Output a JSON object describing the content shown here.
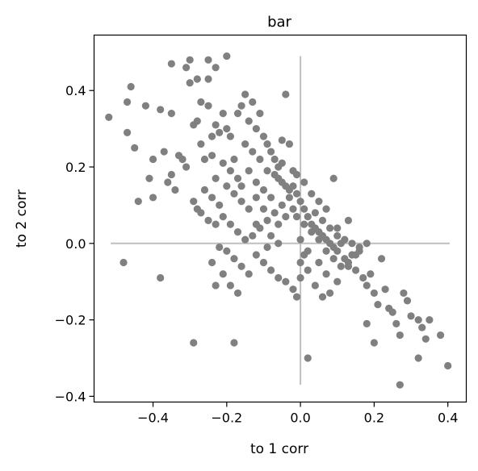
{
  "chart_data": {
    "type": "scatter",
    "title": "bar",
    "xlabel": "to 1 corr",
    "ylabel": "to 2 corr",
    "xlim": [
      -0.56,
      0.45
    ],
    "ylim": [
      -0.415,
      0.545
    ],
    "xticks": [
      -0.4,
      -0.2,
      0.0,
      0.2,
      0.4
    ],
    "xtick_labels": [
      "−0.4",
      "−0.2",
      "0.0",
      "0.2",
      "0.4"
    ],
    "yticks": [
      -0.4,
      -0.2,
      0.0,
      0.2,
      0.4
    ],
    "ytick_labels": [
      "−0.4",
      "−0.2",
      "0.0",
      "0.2",
      "0.4"
    ],
    "grid": false,
    "colors": {
      "points": "#808080",
      "reference_lines": "#bfbfbf",
      "axes": "#000000"
    },
    "reference_lines": {
      "horizontal": {
        "y": 0.0,
        "x_from": -0.515,
        "x_to": 0.405
      },
      "vertical": {
        "x": 0.0,
        "y_from": -0.37,
        "y_to": 0.49
      }
    },
    "series": [
      {
        "points": [
          [
            -0.52,
            0.33
          ],
          [
            -0.46,
            0.41
          ],
          [
            -0.47,
            0.37
          ],
          [
            -0.47,
            0.29
          ],
          [
            -0.45,
            0.25
          ],
          [
            -0.42,
            0.36
          ],
          [
            -0.38,
            0.35
          ],
          [
            -0.35,
            0.47
          ],
          [
            -0.31,
            0.46
          ],
          [
            -0.3,
            0.48
          ],
          [
            -0.28,
            0.43
          ],
          [
            -0.25,
            0.43
          ],
          [
            -0.25,
            0.48
          ],
          [
            -0.23,
            0.46
          ],
          [
            -0.2,
            0.49
          ],
          [
            -0.37,
            0.24
          ],
          [
            -0.35,
            0.34
          ],
          [
            -0.33,
            0.23
          ],
          [
            -0.32,
            0.22
          ],
          [
            -0.31,
            0.2
          ],
          [
            -0.35,
            0.18
          ],
          [
            -0.36,
            0.16
          ],
          [
            -0.34,
            0.14
          ],
          [
            -0.41,
            0.17
          ],
          [
            -0.4,
            0.12
          ],
          [
            -0.44,
            0.11
          ],
          [
            -0.4,
            0.22
          ],
          [
            -0.48,
            -0.05
          ],
          [
            -0.38,
            -0.09
          ],
          [
            -0.29,
            0.11
          ],
          [
            -0.28,
            0.09
          ],
          [
            -0.27,
            0.08
          ],
          [
            -0.28,
            0.32
          ],
          [
            -0.27,
            0.37
          ],
          [
            -0.25,
            0.36
          ],
          [
            -0.24,
            0.28
          ],
          [
            -0.24,
            0.23
          ],
          [
            -0.23,
            0.31
          ],
          [
            -0.22,
            0.29
          ],
          [
            -0.21,
            0.34
          ],
          [
            -0.2,
            0.3
          ],
          [
            -0.19,
            0.28
          ],
          [
            -0.18,
            0.22
          ],
          [
            -0.17,
            0.34
          ],
          [
            -0.16,
            0.36
          ],
          [
            -0.15,
            0.39
          ],
          [
            -0.14,
            0.32
          ],
          [
            -0.13,
            0.37
          ],
          [
            -0.12,
            0.3
          ],
          [
            -0.11,
            0.34
          ],
          [
            -0.1,
            0.28
          ],
          [
            -0.09,
            0.26
          ],
          [
            -0.08,
            0.24
          ],
          [
            -0.07,
            0.22
          ],
          [
            -0.06,
            0.2
          ],
          [
            -0.05,
            0.21
          ],
          [
            -0.04,
            0.39
          ],
          [
            -0.05,
            0.27
          ],
          [
            -0.03,
            0.26
          ],
          [
            -0.02,
            0.19
          ],
          [
            -0.02,
            0.15
          ],
          [
            -0.01,
            0.13
          ],
          [
            0.0,
            0.11
          ],
          [
            0.01,
            0.09
          ],
          [
            0.02,
            0.07
          ],
          [
            0.03,
            0.05
          ],
          [
            0.04,
            0.04
          ],
          [
            0.05,
            0.03
          ],
          [
            0.06,
            0.02
          ],
          [
            0.07,
            0.01
          ],
          [
            0.08,
            0.0
          ],
          [
            0.09,
            -0.01
          ],
          [
            0.1,
            -0.02
          ],
          [
            0.11,
            0.0
          ],
          [
            0.12,
            -0.04
          ],
          [
            0.13,
            -0.06
          ],
          [
            0.14,
            -0.03
          ],
          [
            0.15,
            -0.07
          ],
          [
            0.16,
            -0.01
          ],
          [
            0.17,
            -0.09
          ],
          [
            0.18,
            -0.11
          ],
          [
            0.19,
            -0.08
          ],
          [
            0.2,
            -0.13
          ],
          [
            0.21,
            -0.16
          ],
          [
            0.22,
            -0.04
          ],
          [
            0.23,
            -0.12
          ],
          [
            0.24,
            -0.17
          ],
          [
            0.25,
            -0.18
          ],
          [
            0.26,
            -0.21
          ],
          [
            0.27,
            -0.24
          ],
          [
            0.28,
            -0.13
          ],
          [
            0.29,
            -0.15
          ],
          [
            0.3,
            -0.19
          ],
          [
            0.32,
            -0.2
          ],
          [
            0.33,
            -0.22
          ],
          [
            0.34,
            -0.25
          ],
          [
            0.35,
            -0.2
          ],
          [
            0.38,
            -0.24
          ],
          [
            0.4,
            -0.32
          ],
          [
            0.32,
            -0.3
          ],
          [
            0.27,
            -0.37
          ],
          [
            0.2,
            -0.26
          ],
          [
            0.18,
            -0.21
          ],
          [
            0.1,
            -0.1
          ],
          [
            0.08,
            -0.13
          ],
          [
            0.06,
            -0.14
          ],
          [
            0.04,
            -0.11
          ],
          [
            0.02,
            -0.07
          ],
          [
            0.0,
            -0.09
          ],
          [
            -0.01,
            -0.14
          ],
          [
            0.02,
            -0.3
          ],
          [
            0.09,
            0.17
          ],
          [
            0.13,
            0.06
          ],
          [
            0.1,
            0.04
          ],
          [
            0.07,
            0.09
          ],
          [
            0.05,
            0.11
          ],
          [
            0.03,
            0.13
          ],
          [
            0.01,
            0.16
          ],
          [
            -0.01,
            0.18
          ],
          [
            -0.03,
            0.12
          ],
          [
            -0.05,
            0.1
          ],
          [
            -0.07,
            0.08
          ],
          [
            -0.09,
            0.06
          ],
          [
            -0.11,
            0.04
          ],
          [
            -0.13,
            0.02
          ],
          [
            -0.15,
            0.01
          ],
          [
            -0.17,
            0.03
          ],
          [
            -0.19,
            0.05
          ],
          [
            -0.21,
            0.07
          ],
          [
            -0.23,
            0.05
          ],
          [
            -0.25,
            0.06
          ],
          [
            -0.22,
            -0.01
          ],
          [
            -0.2,
            -0.02
          ],
          [
            -0.18,
            -0.04
          ],
          [
            -0.16,
            -0.06
          ],
          [
            -0.14,
            -0.08
          ],
          [
            -0.12,
            -0.03
          ],
          [
            -0.1,
            -0.05
          ],
          [
            -0.08,
            -0.07
          ],
          [
            -0.06,
            -0.09
          ],
          [
            -0.04,
            -0.1
          ],
          [
            -0.02,
            -0.12
          ],
          [
            -0.24,
            -0.05
          ],
          [
            -0.23,
            -0.11
          ],
          [
            -0.21,
            -0.08
          ],
          [
            -0.19,
            -0.11
          ],
          [
            -0.17,
            -0.13
          ],
          [
            -0.29,
            -0.26
          ],
          [
            -0.18,
            -0.26
          ],
          [
            -0.26,
            0.14
          ],
          [
            -0.24,
            0.12
          ],
          [
            -0.22,
            0.1
          ],
          [
            -0.2,
            0.15
          ],
          [
            -0.18,
            0.13
          ],
          [
            -0.16,
            0.11
          ],
          [
            -0.14,
            0.09
          ],
          [
            -0.12,
            0.16
          ],
          [
            -0.1,
            0.14
          ],
          [
            -0.08,
            0.12
          ],
          [
            -0.06,
            0.17
          ],
          [
            -0.04,
            0.15
          ],
          [
            -0.15,
            0.26
          ],
          [
            -0.13,
            0.24
          ],
          [
            -0.11,
            0.22
          ],
          [
            -0.09,
            0.19
          ],
          [
            -0.07,
            0.18
          ],
          [
            -0.05,
            0.16
          ],
          [
            -0.03,
            0.14
          ],
          [
            -0.01,
            0.07
          ],
          [
            0.01,
            0.05
          ],
          [
            0.03,
            0.03
          ],
          [
            0.05,
            0.01
          ],
          [
            0.07,
            -0.02
          ],
          [
            0.09,
            -0.04
          ],
          [
            0.11,
            -0.06
          ],
          [
            0.13,
            -0.05
          ],
          [
            0.15,
            -0.03
          ],
          [
            0.04,
            0.08
          ],
          [
            0.06,
            0.06
          ],
          [
            0.08,
            0.04
          ],
          [
            0.1,
            0.02
          ],
          [
            0.12,
            0.01
          ],
          [
            0.14,
            0.0
          ],
          [
            0.16,
            -0.02
          ],
          [
            0.18,
            0.0
          ],
          [
            -0.3,
            0.42
          ],
          [
            -0.29,
            0.31
          ],
          [
            -0.26,
            0.22
          ],
          [
            -0.27,
            0.26
          ],
          [
            -0.12,
            0.05
          ],
          [
            -0.1,
            0.09
          ],
          [
            -0.08,
            0.02
          ],
          [
            -0.06,
            0.05
          ],
          [
            -0.04,
            0.07
          ],
          [
            -0.02,
            0.09
          ],
          [
            0.0,
            0.01
          ],
          [
            0.02,
            -0.02
          ],
          [
            -0.14,
            0.19
          ],
          [
            -0.17,
            0.17
          ],
          [
            -0.19,
            0.19
          ],
          [
            -0.21,
            0.21
          ],
          [
            -0.23,
            0.17
          ],
          [
            -0.16,
            0.15
          ],
          [
            -0.12,
            0.12
          ],
          [
            0.0,
            -0.05
          ],
          [
            0.01,
            -0.03
          ],
          [
            -0.06,
            0.0
          ],
          [
            -0.09,
            -0.01
          ],
          [
            0.05,
            -0.05
          ],
          [
            0.07,
            -0.08
          ]
        ]
      }
    ]
  }
}
